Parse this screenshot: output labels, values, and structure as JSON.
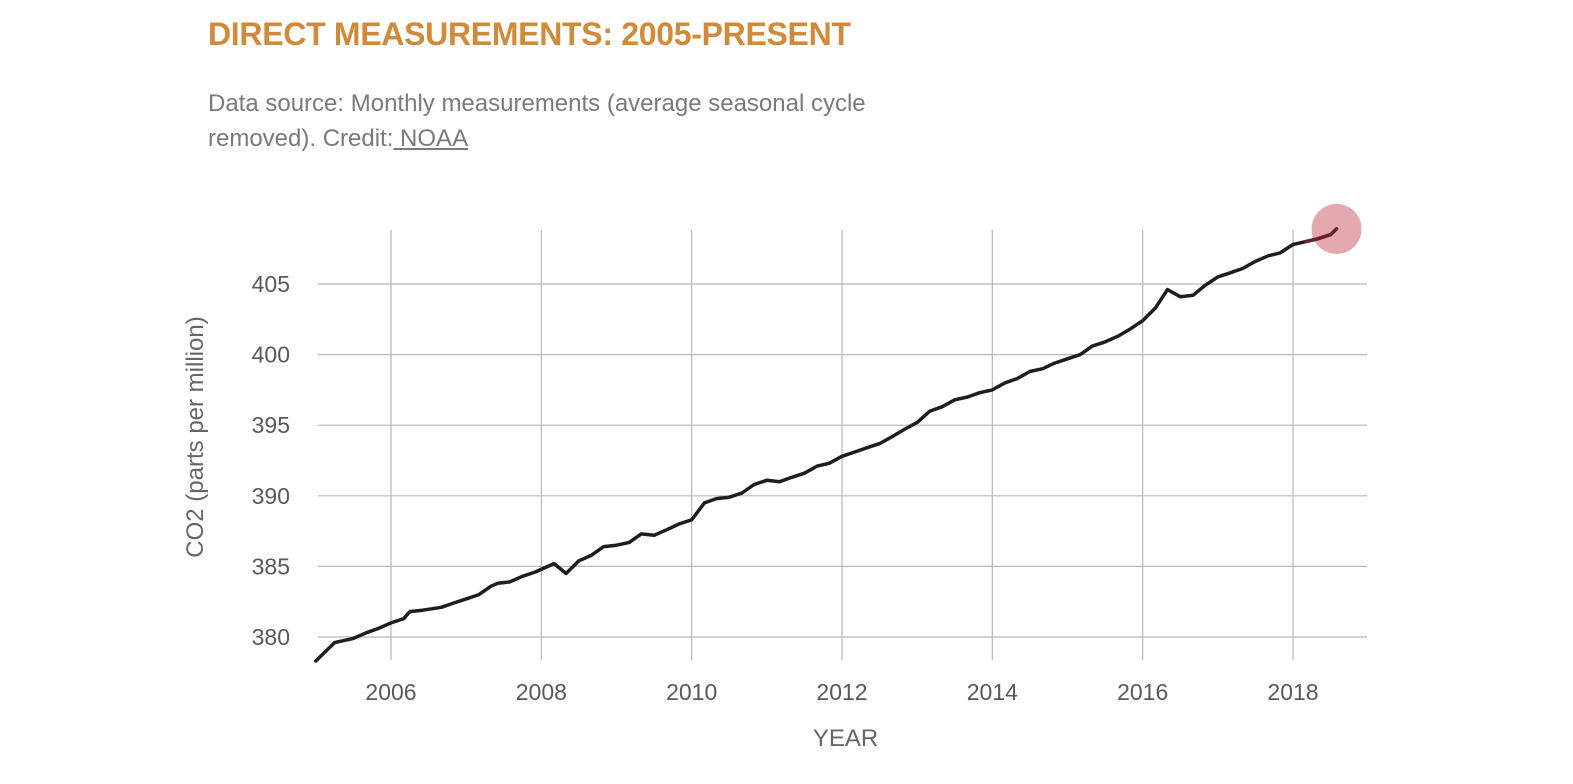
{
  "header": {
    "title": "DIRECT MEASUREMENTS: 2005-PRESENT",
    "subtitle_text": "Data source: Monthly measurements (average seasonal cycle removed). Credit:",
    "credit_link": " NOAA"
  },
  "colors": {
    "title": "#d08a3a",
    "line": "#1e1e1e",
    "highlight": "#d2707a",
    "grid": "#b8b8b8"
  },
  "chart_data": {
    "type": "line",
    "xlabel": "YEAR",
    "ylabel": "CO2 (parts per million)",
    "xlim": [
      2005,
      2019
    ],
    "ylim": [
      378.3,
      409.2
    ],
    "x_ticks": [
      2006,
      2008,
      2010,
      2012,
      2014,
      2016,
      2018
    ],
    "y_ticks": [
      380,
      385,
      390,
      395,
      400,
      405
    ],
    "grid": true,
    "highlight": {
      "x": 2018.58,
      "y": 408.9
    },
    "series": [
      {
        "x": [
          2005.0,
          2005.25,
          2005.5,
          2005.67,
          2005.83,
          2006.0,
          2006.17,
          2006.25,
          2006.42,
          2006.67,
          2006.83,
          2007.0,
          2007.17,
          2007.33,
          2007.42,
          2007.58,
          2007.75,
          2007.92,
          2008.17,
          2008.33,
          2008.5,
          2008.67,
          2008.83,
          2009.0,
          2009.17,
          2009.33,
          2009.5,
          2009.67,
          2009.83,
          2010.0,
          2010.17,
          2010.33,
          2010.5,
          2010.67,
          2010.83,
          2011.0,
          2011.17,
          2011.33,
          2011.5,
          2011.67,
          2011.83,
          2012.0,
          2012.17,
          2012.33,
          2012.5,
          2012.67,
          2012.83,
          2013.0,
          2013.17,
          2013.33,
          2013.5,
          2013.67,
          2013.83,
          2014.0,
          2014.17,
          2014.33,
          2014.5,
          2014.67,
          2014.83,
          2015.0,
          2015.17,
          2015.33,
          2015.5,
          2015.67,
          2015.83,
          2016.0,
          2016.17,
          2016.33,
          2016.5,
          2016.67,
          2016.83,
          2017.0,
          2017.17,
          2017.33,
          2017.5,
          2017.67,
          2017.83,
          2018.0,
          2018.17,
          2018.33,
          2018.5,
          2018.58
        ],
        "y": [
          378.3,
          379.6,
          379.9,
          380.3,
          380.6,
          381.0,
          381.3,
          381.8,
          381.9,
          382.1,
          382.4,
          382.7,
          383.0,
          383.6,
          383.8,
          383.9,
          384.3,
          384.6,
          385.2,
          384.5,
          385.4,
          385.8,
          386.4,
          386.5,
          386.7,
          387.3,
          387.2,
          387.6,
          388.0,
          388.3,
          389.5,
          389.8,
          389.9,
          390.2,
          390.8,
          391.1,
          391.0,
          391.3,
          391.6,
          392.1,
          392.3,
          392.8,
          393.1,
          393.4,
          393.7,
          394.2,
          394.7,
          395.2,
          396.0,
          396.3,
          396.8,
          397.0,
          397.3,
          397.5,
          398.0,
          398.3,
          398.8,
          399.0,
          399.4,
          399.7,
          400.0,
          400.6,
          400.9,
          401.3,
          401.8,
          402.4,
          403.3,
          404.6,
          404.1,
          404.2,
          404.9,
          405.5,
          405.8,
          406.1,
          406.6,
          407.0,
          407.2,
          407.8,
          408.0,
          408.2,
          408.5,
          408.9
        ]
      }
    ]
  }
}
